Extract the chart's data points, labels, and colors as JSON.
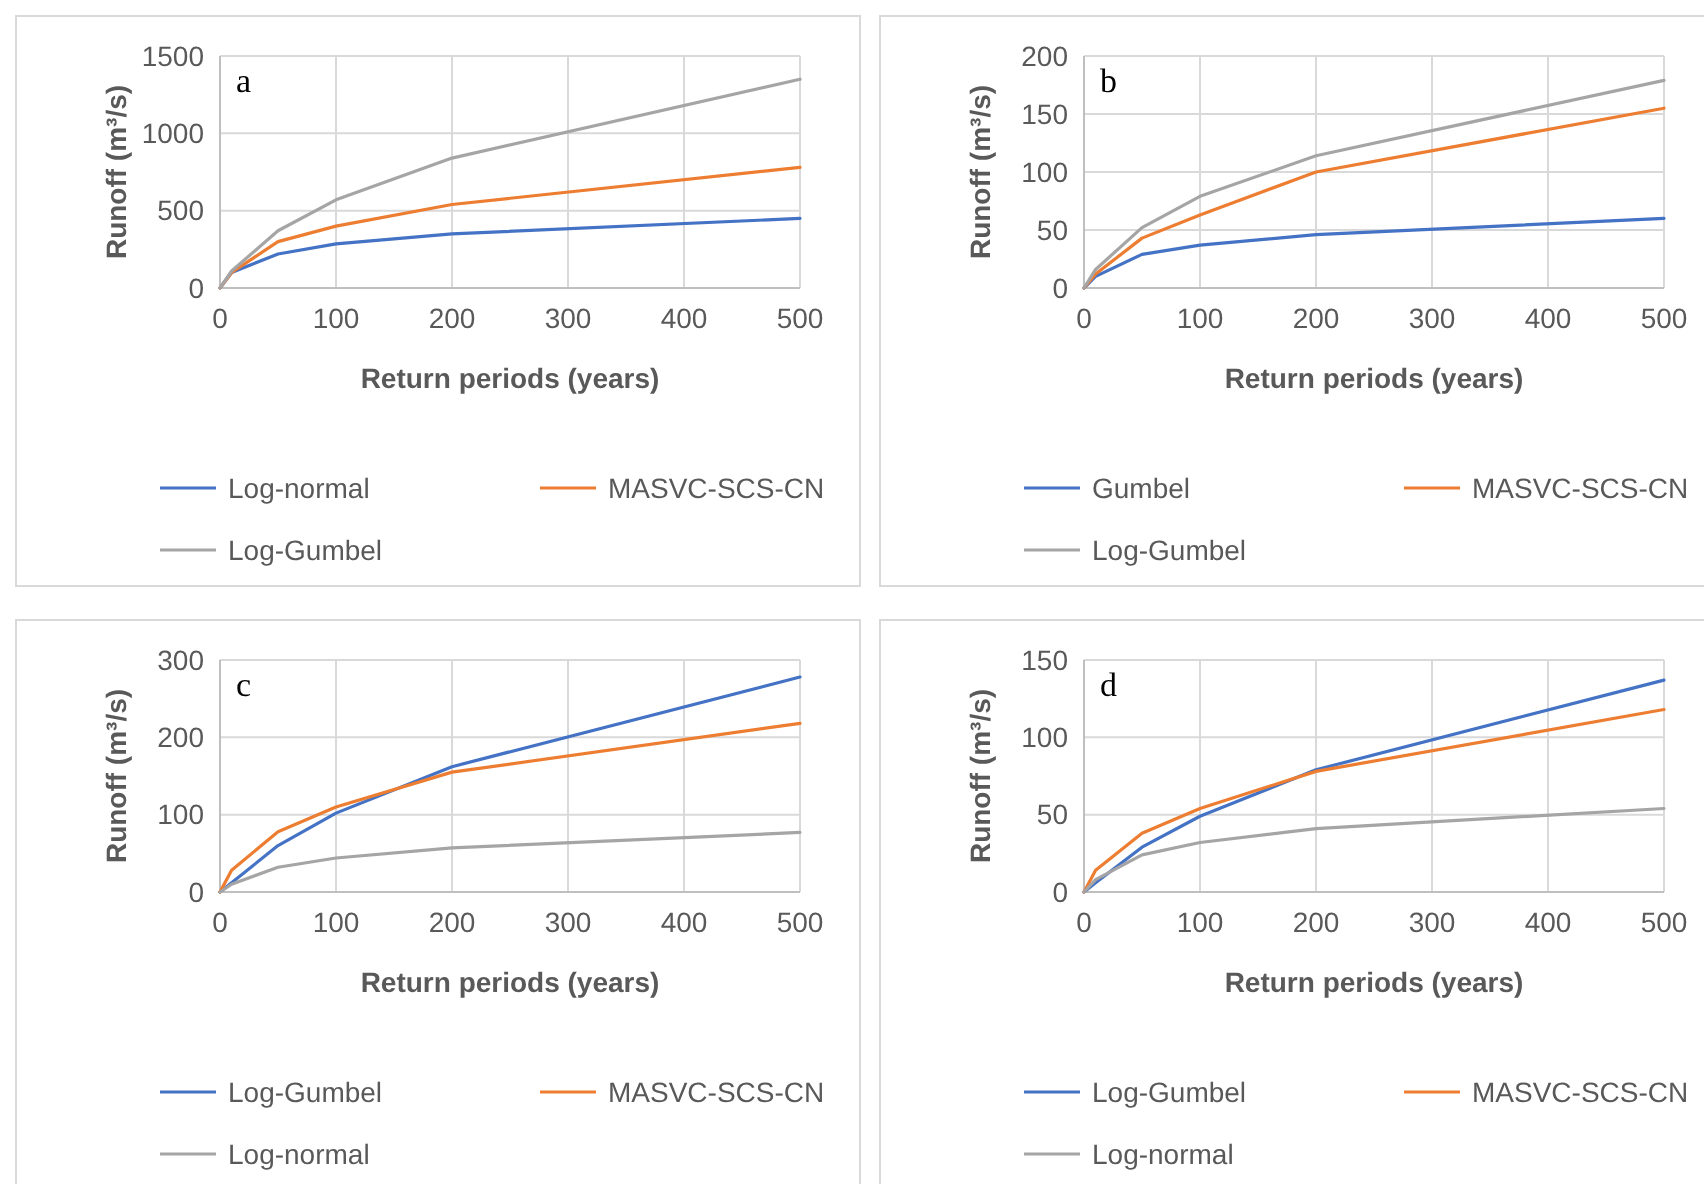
{
  "chart_data": [
    {
      "type": "line",
      "xlabel": "Return periods (years)",
      "ylabel": "Runoff (m³/s)",
      "annotations": [
        "a"
      ],
      "x": [
        0,
        10,
        50,
        100,
        200,
        500
      ],
      "xlim": [
        0,
        500
      ],
      "xticks": [
        0,
        100,
        200,
        300,
        400,
        500
      ],
      "ylim": [
        0,
        1500
      ],
      "yticks": [
        0,
        500,
        1000,
        1500
      ],
      "grid": true,
      "legend": "bottom",
      "series": [
        {
          "name": "Log-normal",
          "color": "#4472c4",
          "values": [
            0,
            100,
            220,
            285,
            350,
            450
          ]
        },
        {
          "name": "MASVC-SCS-CN",
          "color": "#ed7d31",
          "values": [
            0,
            100,
            300,
            400,
            540,
            780
          ]
        },
        {
          "name": "Log-Gumbel",
          "color": "#a5a5a5",
          "values": [
            0,
            110,
            370,
            570,
            840,
            1350
          ]
        }
      ]
    },
    {
      "type": "line",
      "xlabel": "Return periods (years)",
      "ylabel": "Runoff (m³/s)",
      "annotations": [
        "b"
      ],
      "x": [
        0,
        10,
        50,
        100,
        200,
        500
      ],
      "xlim": [
        0,
        500
      ],
      "xticks": [
        0,
        100,
        200,
        300,
        400,
        500
      ],
      "ylim": [
        0,
        200
      ],
      "yticks": [
        0,
        50,
        100,
        150,
        200
      ],
      "grid": true,
      "legend": "bottom",
      "series": [
        {
          "name": "Gumbel",
          "color": "#4472c4",
          "values": [
            0,
            10,
            29,
            37,
            46,
            60
          ]
        },
        {
          "name": "MASVC-SCS-CN",
          "color": "#ed7d31",
          "values": [
            0,
            12,
            43,
            63,
            100,
            155
          ]
        },
        {
          "name": "Log-Gumbel",
          "color": "#a5a5a5",
          "values": [
            0,
            16,
            52,
            79,
            114,
            179
          ]
        }
      ]
    },
    {
      "type": "line",
      "xlabel": "Return periods (years)",
      "ylabel": "Runoff (m³/s)",
      "annotations": [
        "c"
      ],
      "x": [
        0,
        10,
        50,
        100,
        200,
        500
      ],
      "xlim": [
        0,
        500
      ],
      "xticks": [
        0,
        100,
        200,
        300,
        400,
        500
      ],
      "ylim": [
        0,
        300
      ],
      "yticks": [
        0,
        100,
        200,
        300
      ],
      "grid": true,
      "legend": "bottom",
      "series": [
        {
          "name": "Log-Gumbel",
          "color": "#4472c4",
          "values": [
            0,
            12,
            60,
            102,
            162,
            278
          ]
        },
        {
          "name": "MASVC-SCS-CN",
          "color": "#ed7d31",
          "values": [
            0,
            28,
            78,
            110,
            155,
            218
          ]
        },
        {
          "name": "Log-normal",
          "color": "#a5a5a5",
          "values": [
            0,
            10,
            32,
            44,
            57,
            77
          ]
        }
      ]
    },
    {
      "type": "line",
      "xlabel": "Return periods (years)",
      "ylabel": "Runoff (m³/s)",
      "annotations": [
        "d"
      ],
      "x": [
        0,
        10,
        50,
        100,
        200,
        500
      ],
      "xlim": [
        0,
        500
      ],
      "xticks": [
        0,
        100,
        200,
        300,
        400,
        500
      ],
      "ylim": [
        0,
        150
      ],
      "yticks": [
        0,
        50,
        100,
        150
      ],
      "grid": true,
      "legend": "bottom",
      "series": [
        {
          "name": "Log-Gumbel",
          "color": "#4472c4",
          "values": [
            0,
            6,
            29,
            49,
            79,
            137
          ]
        },
        {
          "name": "MASVC-SCS-CN",
          "color": "#ed7d31",
          "values": [
            0,
            14,
            38,
            54,
            78,
            118
          ]
        },
        {
          "name": "Log-normal",
          "color": "#a5a5a5",
          "values": [
            0,
            8,
            24,
            32,
            41,
            54
          ]
        }
      ]
    }
  ]
}
